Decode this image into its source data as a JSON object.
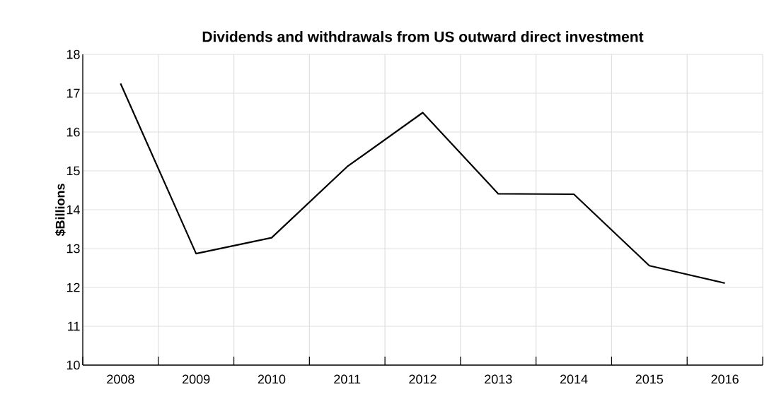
{
  "chart_data": {
    "type": "line",
    "title": "Dividends and withdrawals from US outward direct investment",
    "ylabel": "$Billions",
    "categories": [
      "2008",
      "2009",
      "2010",
      "2011",
      "2012",
      "2013",
      "2014",
      "2015",
      "2016"
    ],
    "series": [
      {
        "color": "#000000",
        "values": [
          17.25,
          12.87,
          13.28,
          15.11,
          16.5,
          14.41,
          14.4,
          12.56,
          12.11
        ]
      }
    ],
    "ylim": [
      10,
      18
    ],
    "yticks": [
      10,
      11,
      12,
      13,
      14,
      15,
      16,
      17,
      18
    ],
    "grid": true,
    "marker": "none",
    "line_style": "solid"
  }
}
